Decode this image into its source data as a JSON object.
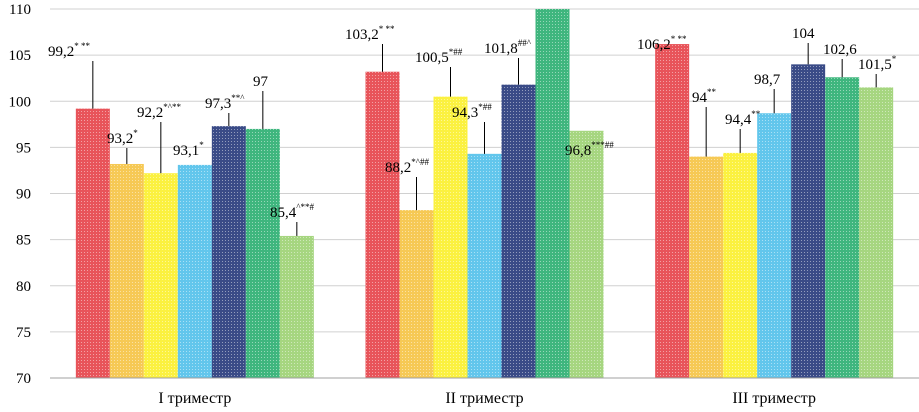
{
  "chart_data": {
    "type": "bar",
    "title": "",
    "xlabel": "",
    "ylabel": "",
    "ylim": [
      70,
      110
    ],
    "yticks": [
      70,
      75,
      80,
      85,
      90,
      95,
      100,
      105,
      110
    ],
    "grid": true,
    "legend": "none",
    "categories": [
      "I триместр",
      "II триместр",
      "III триместр"
    ],
    "series": [
      {
        "color": "#e8545a",
        "values": [
          99.2,
          103.2,
          106.2
        ]
      },
      {
        "color": "#f6c955",
        "values": [
          93.2,
          88.2,
          94.0
        ]
      },
      {
        "color": "#fbf140",
        "values": [
          92.2,
          100.5,
          94.4
        ]
      },
      {
        "color": "#62c6ec",
        "values": [
          93.1,
          94.3,
          98.7
        ]
      },
      {
        "color": "#3a4b87",
        "values": [
          97.3,
          101.8,
          104.0
        ]
      },
      {
        "color": "#3fb67e",
        "values": [
          97.0,
          110.0,
          102.6
        ]
      },
      {
        "color": "#a6d680",
        "values": [
          85.4,
          96.8,
          101.5
        ]
      }
    ],
    "data_labels": [
      {
        "cat": 0,
        "s": 0,
        "main": "99,2",
        "sup": "* **"
      },
      {
        "cat": 0,
        "s": 1,
        "main": "93,2",
        "sup": "*"
      },
      {
        "cat": 0,
        "s": 2,
        "main": "92,2",
        "sup": "*^**"
      },
      {
        "cat": 0,
        "s": 3,
        "main": "93,1",
        "sup": "*"
      },
      {
        "cat": 0,
        "s": 4,
        "main": "97,3",
        "sup": "**^"
      },
      {
        "cat": 0,
        "s": 5,
        "main": "97",
        "sup": ""
      },
      {
        "cat": 0,
        "s": 6,
        "main": "85,4",
        "sup": "^**#"
      },
      {
        "cat": 1,
        "s": 0,
        "main": "103,2",
        "sup": "* **"
      },
      {
        "cat": 1,
        "s": 1,
        "main": "88,2",
        "sup": "*^##"
      },
      {
        "cat": 1,
        "s": 2,
        "main": "100,5",
        "sup": "*##"
      },
      {
        "cat": 1,
        "s": 3,
        "main": "94,3",
        "sup": "*##"
      },
      {
        "cat": 1,
        "s": 4,
        "main": "101,8",
        "sup": "##^"
      },
      {
        "cat": 1,
        "s": 6,
        "main": "96,8",
        "sup": "***##"
      },
      {
        "cat": 2,
        "s": 0,
        "main": "106,2",
        "sup": "* **"
      },
      {
        "cat": 2,
        "s": 1,
        "main": "94",
        "sup": "**"
      },
      {
        "cat": 2,
        "s": 2,
        "main": "94,4",
        "sup": "**"
      },
      {
        "cat": 2,
        "s": 3,
        "main": "98,7",
        "sup": ""
      },
      {
        "cat": 2,
        "s": 4,
        "main": "104",
        "sup": ""
      },
      {
        "cat": 2,
        "s": 5,
        "main": "102,6",
        "sup": ""
      },
      {
        "cat": 2,
        "s": 6,
        "main": "101,5",
        "sup": "*"
      }
    ]
  }
}
